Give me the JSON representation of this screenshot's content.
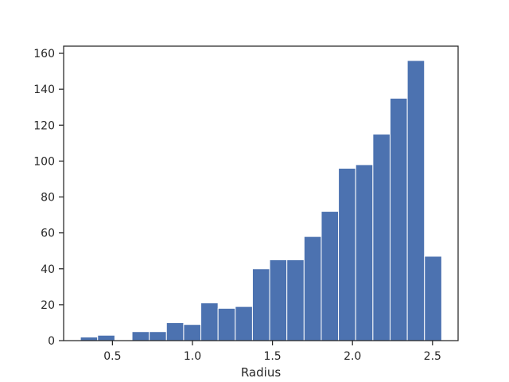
{
  "chart_data": {
    "type": "bar",
    "title": "",
    "xlabel": "Radius",
    "ylabel": "",
    "xlim": [
      0.195,
      2.66
    ],
    "ylim": [
      0,
      164
    ],
    "grid": false,
    "legend": "none",
    "color": "#4c72b0",
    "x_ticks": [
      0.5,
      1.0,
      1.5,
      2.0,
      2.5
    ],
    "x_tick_labels": [
      "0.5",
      "1.0",
      "1.5",
      "2.0",
      "2.5"
    ],
    "y_ticks": [
      0,
      20,
      40,
      60,
      80,
      100,
      120,
      140,
      160
    ],
    "y_tick_labels": [
      "0",
      "20",
      "40",
      "60",
      "80",
      "100",
      "120",
      "140",
      "160"
    ],
    "bin_edges": [
      0.3,
      0.4075,
      0.515,
      0.6225,
      0.73,
      0.8375,
      0.945,
      1.0525,
      1.16,
      1.2675,
      1.375,
      1.4825,
      1.59,
      1.6975,
      1.805,
      1.9125,
      2.02,
      2.1275,
      2.235,
      2.3425,
      2.45,
      2.5575
    ],
    "values": [
      2,
      3,
      0,
      5,
      5,
      10,
      9,
      21,
      18,
      19,
      40,
      45,
      45,
      58,
      72,
      96,
      98,
      115,
      135,
      156,
      47
    ]
  }
}
